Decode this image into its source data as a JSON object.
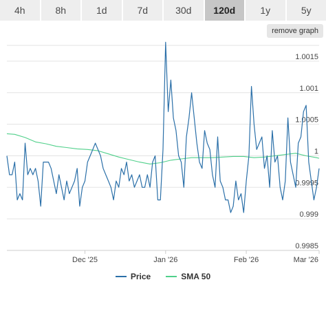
{
  "tabs": [
    {
      "label": "4h",
      "active": false
    },
    {
      "label": "8h",
      "active": false
    },
    {
      "label": "1d",
      "active": false
    },
    {
      "label": "7d",
      "active": false
    },
    {
      "label": "30d",
      "active": false
    },
    {
      "label": "120d",
      "active": true
    },
    {
      "label": "1y",
      "active": false
    },
    {
      "label": "5y",
      "active": false
    }
  ],
  "remove_graph_label": "remove graph",
  "colors": {
    "price": "#2a6fa8",
    "sma": "#4fd08a",
    "grid": "#e3e3e3",
    "axis_text": "#444444"
  },
  "chart_data": {
    "type": "line",
    "x_range": [
      "2025-11-01",
      "2026-03-01"
    ],
    "ylim": [
      0.9985,
      1.00175
    ],
    "yticks": [
      0.9985,
      0.999,
      0.9995,
      1,
      1.0005,
      1.001,
      1.0015
    ],
    "ytick_labels": [
      "0.9985",
      "0.999",
      "0.9995",
      "1",
      "1.0005",
      "1.001",
      "1.0015"
    ],
    "xticks": [
      "2025-12-01",
      "2026-01-01",
      "2026-02-01",
      "2026-03-01"
    ],
    "xtick_labels": [
      "Dec '25",
      "Jan '26",
      "Feb '26",
      "Mar '26"
    ],
    "grid": true,
    "legend": "bottom",
    "series": [
      {
        "name": "Price",
        "x": [
          "2025-11-01",
          "2025-11-02",
          "2025-11-03",
          "2025-11-04",
          "2025-11-05",
          "2025-11-06",
          "2025-11-07",
          "2025-11-08",
          "2025-11-09",
          "2025-11-10",
          "2025-11-11",
          "2025-11-12",
          "2025-11-13",
          "2025-11-14",
          "2025-11-15",
          "2025-11-16",
          "2025-11-17",
          "2025-11-18",
          "2025-11-19",
          "2025-11-20",
          "2025-11-21",
          "2025-11-22",
          "2025-11-23",
          "2025-11-24",
          "2025-11-25",
          "2025-11-26",
          "2025-11-27",
          "2025-11-28",
          "2025-11-29",
          "2025-11-30",
          "2025-12-01",
          "2025-12-02",
          "2025-12-03",
          "2025-12-04",
          "2025-12-05",
          "2025-12-06",
          "2025-12-07",
          "2025-12-08",
          "2025-12-09",
          "2025-12-10",
          "2025-12-11",
          "2025-12-12",
          "2025-12-13",
          "2025-12-14",
          "2025-12-15",
          "2025-12-16",
          "2025-12-17",
          "2025-12-18",
          "2025-12-19",
          "2025-12-20",
          "2025-12-21",
          "2025-12-22",
          "2025-12-23",
          "2025-12-24",
          "2025-12-25",
          "2025-12-26",
          "2025-12-27",
          "2025-12-28",
          "2025-12-29",
          "2025-12-30",
          "2025-12-31",
          "2026-01-01",
          "2026-01-02",
          "2026-01-03",
          "2026-01-04",
          "2026-01-05",
          "2026-01-06",
          "2026-01-07",
          "2026-01-08",
          "2026-01-09",
          "2026-01-10",
          "2026-01-11",
          "2026-01-12",
          "2026-01-13",
          "2026-01-14",
          "2026-01-15",
          "2026-01-16",
          "2026-01-17",
          "2026-01-18",
          "2026-01-19",
          "2026-01-20",
          "2026-01-21",
          "2026-01-22",
          "2026-01-23",
          "2026-01-24",
          "2026-01-25",
          "2026-01-26",
          "2026-01-27",
          "2026-01-28",
          "2026-01-29",
          "2026-01-30",
          "2026-01-31",
          "2026-02-01",
          "2026-02-02",
          "2026-02-03",
          "2026-02-04",
          "2026-02-05",
          "2026-02-06",
          "2026-02-07",
          "2026-02-08",
          "2026-02-09",
          "2026-02-10",
          "2026-02-11",
          "2026-02-12",
          "2026-02-13",
          "2026-02-14",
          "2026-02-15",
          "2026-02-16",
          "2026-02-17",
          "2026-02-18",
          "2026-02-19",
          "2026-02-20",
          "2026-02-21",
          "2026-02-22",
          "2026-02-23",
          "2026-02-24",
          "2026-02-25",
          "2026-02-26",
          "2026-02-27",
          "2026-02-28",
          "2026-03-01"
        ],
        "y": [
          1.0,
          0.9997,
          0.9997,
          0.9999,
          0.9993,
          0.9994,
          0.9993,
          1.0002,
          0.9997,
          0.9998,
          0.9997,
          0.9998,
          0.9996,
          0.9992,
          0.9999,
          0.9999,
          0.9999,
          0.9998,
          0.9996,
          0.9994,
          0.9997,
          0.9995,
          0.9993,
          0.9996,
          0.9994,
          0.9995,
          0.9996,
          0.9998,
          0.9992,
          0.9995,
          0.9996,
          0.9999,
          1.0,
          1.0001,
          1.0002,
          1.0001,
          1.0,
          0.9998,
          0.9997,
          0.9996,
          0.9995,
          0.9993,
          0.9996,
          0.9995,
          0.9998,
          0.9997,
          0.9999,
          0.9996,
          0.9997,
          0.9995,
          0.9996,
          0.9997,
          0.9995,
          0.9995,
          0.9997,
          0.9995,
          0.9999,
          1.0,
          0.9993,
          0.9993,
          1.0001,
          1.0018,
          1.0007,
          1.0012,
          1.0006,
          1.0004,
          1.0,
          0.9999,
          0.9995,
          1.0003,
          1.0006,
          1.001,
          1.0006,
          1.0002,
          0.9999,
          0.9998,
          1.0004,
          1.0002,
          1.0001,
          0.9997,
          0.9995,
          1.0003,
          0.9996,
          0.9995,
          0.9993,
          0.9993,
          0.9991,
          0.9992,
          0.9996,
          0.9993,
          0.9994,
          0.9991,
          0.9996,
          1.0,
          1.0011,
          1.0005,
          1.0001,
          1.0002,
          1.0003,
          0.9998,
          1.0,
          0.9995,
          1.0004,
          0.9999,
          1.0,
          0.9995,
          0.9993,
          0.9996,
          1.0006,
          0.9999,
          0.9997,
          0.9995,
          1.0002,
          1.0003,
          1.0007,
          1.0008,
          0.9999,
          0.9996,
          0.9993,
          0.9995,
          0.9998
        ]
      },
      {
        "name": "SMA 50",
        "x": [
          "2025-11-01",
          "2025-11-04",
          "2025-11-08",
          "2025-11-12",
          "2025-11-16",
          "2025-11-20",
          "2025-11-24",
          "2025-11-28",
          "2025-12-02",
          "2025-12-06",
          "2025-12-10",
          "2025-12-14",
          "2025-12-18",
          "2025-12-22",
          "2025-12-26",
          "2025-12-30",
          "2026-01-03",
          "2026-01-07",
          "2026-01-11",
          "2026-01-15",
          "2026-01-19",
          "2026-01-23",
          "2026-01-27",
          "2026-01-31",
          "2026-02-04",
          "2026-02-08",
          "2026-02-12",
          "2026-02-16",
          "2026-02-20",
          "2026-02-24",
          "2026-02-28",
          "2026-03-01"
        ],
        "y": [
          1.00035,
          1.00034,
          1.00029,
          1.00022,
          1.00019,
          1.00015,
          1.00013,
          1.00011,
          1.0001,
          1.00008,
          1.00003,
          0.99998,
          0.99994,
          0.9999,
          0.99987,
          0.99989,
          0.99993,
          0.99995,
          0.99997,
          0.99997,
          0.99997,
          0.99998,
          0.99999,
          0.99999,
          0.99997,
          0.99998,
          1.0,
          1.00002,
          1.00004,
          1.0,
          0.99997,
          0.99996
        ]
      }
    ]
  }
}
